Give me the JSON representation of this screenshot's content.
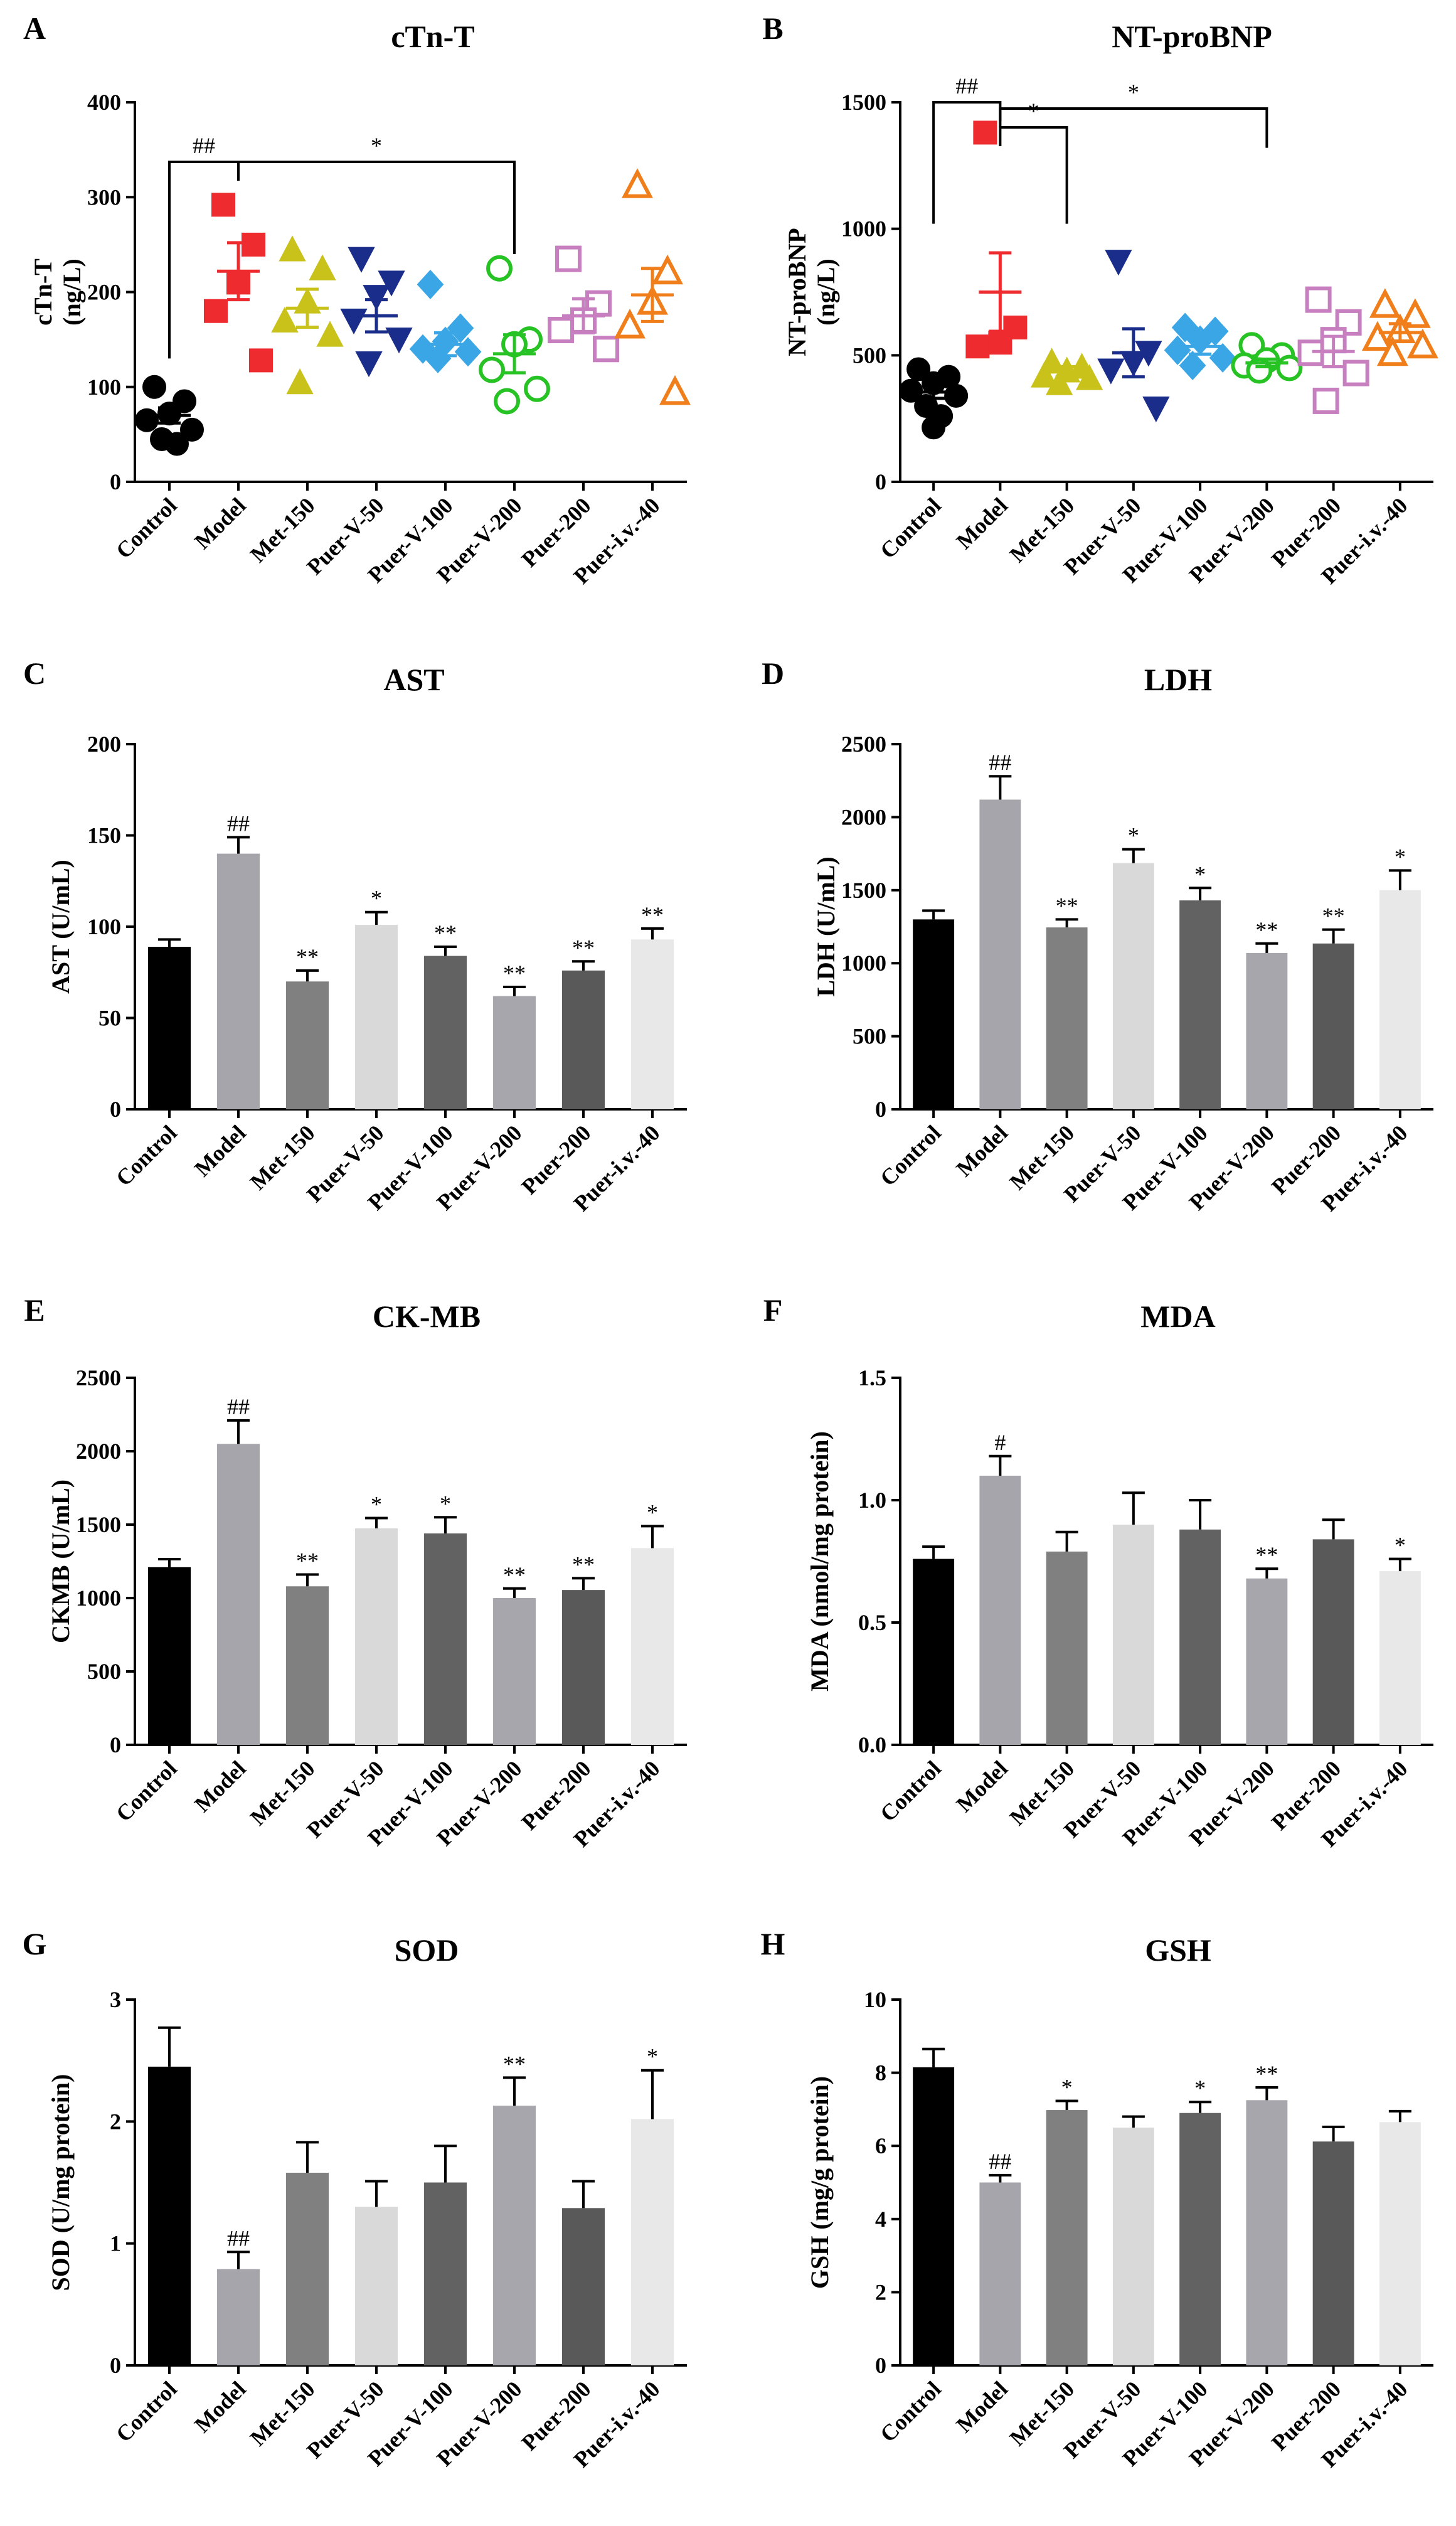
{
  "figure_label": "Serum myocardial injury markers and oxidative stress indices",
  "chart_data": [
    {
      "letter": "A",
      "type": "scatter",
      "title": "cTn-T",
      "ylabel": "cTn-T\n(ng/L)",
      "ylim": [
        0,
        400
      ],
      "yticks": [
        0,
        100,
        200,
        300,
        400
      ],
      "categories": [
        "Control",
        "Model",
        "Met-150",
        "Puer-V-50",
        "Puer-V-100",
        "Puer-V-200",
        "Puer-200",
        "Puer-i.v.-40"
      ],
      "colors": [
        "#000000",
        "#ee2b2f",
        "#c8c21b",
        "#1a2d8a",
        "#3aa6e6",
        "#27c325",
        "#c77fc0",
        "#f07e1a"
      ],
      "markers": [
        "circle",
        "square",
        "triangle",
        "triangle-down",
        "diamond",
        "circle-open",
        "square-open",
        "triangle-open"
      ],
      "points": [
        [
          100,
          85,
          72,
          65,
          55,
          45,
          40
        ],
        [
          292,
          250,
          210,
          180,
          128
        ],
        [
          245,
          225,
          190,
          170,
          155,
          105
        ],
        [
          235,
          210,
          195,
          170,
          150,
          125
        ],
        [
          208,
          162,
          148,
          140,
          137,
          130
        ],
        [
          225,
          150,
          145,
          118,
          98,
          85
        ],
        [
          235,
          188,
          170,
          160,
          140
        ],
        [
          313,
          222,
          190,
          165,
          95
        ]
      ],
      "means": [
        70,
        222,
        183,
        175,
        145,
        135,
        175,
        197
      ],
      "sems": [
        8,
        30,
        20,
        17,
        12,
        20,
        18,
        28
      ],
      "brackets": [
        {
          "from": 0,
          "to": 1,
          "label": "##"
        },
        {
          "from": 1,
          "to": 5,
          "label": "*"
        }
      ]
    },
    {
      "letter": "B",
      "type": "scatter",
      "title": "NT-proBNP",
      "ylabel": "NT-proBNP\n(ng/L)",
      "ylim": [
        0,
        1500
      ],
      "yticks": [
        0,
        500,
        1000,
        1500
      ],
      "categories": [
        "Control",
        "Model",
        "Met-150",
        "Puer-V-50",
        "Puer-V-100",
        "Puer-V-200",
        "Puer-200",
        "Puer-i.v.-40"
      ],
      "colors": [
        "#000000",
        "#ee2b2f",
        "#c8c21b",
        "#1a2d8a",
        "#3aa6e6",
        "#27c325",
        "#c77fc0",
        "#f07e1a"
      ],
      "markers": [
        "circle",
        "square",
        "triangle",
        "triangle-down",
        "diamond",
        "circle-open",
        "square-open",
        "triangle-open"
      ],
      "points": [
        [
          445,
          415,
          390,
          360,
          340,
          300,
          260,
          215
        ],
        [
          1380,
          610,
          550,
          535
        ],
        [
          475,
          455,
          440,
          420,
          410,
          390
        ],
        [
          870,
          510,
          470,
          440,
          290
        ],
        [
          610,
          595,
          560,
          520,
          490,
          460
        ],
        [
          540,
          500,
          480,
          460,
          450,
          440
        ],
        [
          720,
          630,
          560,
          510,
          430,
          320
        ],
        [
          700,
          660,
          600,
          570,
          540,
          510
        ]
      ],
      "means": [
        355,
        750,
        435,
        510,
        535,
        470,
        515,
        590
      ],
      "sems": [
        25,
        155,
        20,
        95,
        30,
        15,
        60,
        35
      ],
      "brackets": [
        {
          "from": 0,
          "to": 1,
          "label": "##"
        },
        {
          "from": 1,
          "to": 2,
          "label": "*"
        },
        {
          "from": 1,
          "to": 5,
          "label": "*"
        }
      ]
    },
    {
      "letter": "C",
      "type": "bar",
      "title": "AST",
      "ylabel": "AST (U/mL)",
      "ylim": [
        0,
        200
      ],
      "yticks": [
        0,
        50,
        100,
        150,
        200
      ],
      "categories": [
        "Control",
        "Model",
        "Met-150",
        "Puer-V-50",
        "Puer-V-100",
        "Puer-V-200",
        "Puer-200",
        "Puer-i.v.-40"
      ],
      "values": [
        89,
        140,
        70,
        101,
        84,
        62,
        76,
        93
      ],
      "errors": [
        4,
        9,
        6,
        7,
        5,
        5,
        5,
        6
      ],
      "marks": [
        "",
        "##",
        "**",
        "*",
        "**",
        "**",
        "**",
        "**"
      ]
    },
    {
      "letter": "D",
      "type": "bar",
      "title": "LDH",
      "ylabel": "LDH (U/mL)",
      "ylim": [
        0,
        2500
      ],
      "yticks": [
        0,
        500,
        1000,
        1500,
        2000,
        2500
      ],
      "categories": [
        "Control",
        "Model",
        "Met-150",
        "Puer-V-50",
        "Puer-V-100",
        "Puer-V-200",
        "Puer-200",
        "Puer-i.v.-40"
      ],
      "values": [
        1300,
        2120,
        1245,
        1685,
        1430,
        1070,
        1135,
        1500
      ],
      "errors": [
        60,
        160,
        55,
        95,
        85,
        65,
        95,
        135
      ],
      "marks": [
        "",
        "##",
        "**",
        "*",
        "*",
        "**",
        "**",
        "*"
      ]
    },
    {
      "letter": "E",
      "type": "bar",
      "title": "CK-MB",
      "ylabel": "CKMB (U/mL)",
      "ylim": [
        0,
        2500
      ],
      "yticks": [
        0,
        500,
        1000,
        1500,
        2000,
        2500
      ],
      "categories": [
        "Control",
        "Model",
        "Met-150",
        "Puer-V-50",
        "Puer-V-100",
        "Puer-V-200",
        "Puer-200",
        "Puer-i.v.-40"
      ],
      "values": [
        1210,
        2050,
        1080,
        1475,
        1440,
        1000,
        1055,
        1340
      ],
      "errors": [
        55,
        160,
        80,
        70,
        110,
        65,
        80,
        150
      ],
      "marks": [
        "",
        "##",
        "**",
        "*",
        "*",
        "**",
        "**",
        "*"
      ]
    },
    {
      "letter": "F",
      "type": "bar",
      "title": "MDA",
      "ylabel": "MDA (nmol/mg protein)",
      "ylim": [
        0,
        1.5
      ],
      "yticks": [
        "0.0",
        "0.5",
        "1.0",
        "1.5"
      ],
      "categories": [
        "Control",
        "Model",
        "Met-150",
        "Puer-V-50",
        "Puer-V-100",
        "Puer-V-200",
        "Puer-200",
        "Puer-i.v.-40"
      ],
      "values": [
        0.76,
        1.1,
        0.79,
        0.9,
        0.88,
        0.68,
        0.84,
        0.71
      ],
      "errors": [
        0.05,
        0.08,
        0.08,
        0.13,
        0.12,
        0.04,
        0.08,
        0.05
      ],
      "marks": [
        "",
        "#",
        "",
        "",
        "",
        "**",
        "",
        "*"
      ]
    },
    {
      "letter": "G",
      "type": "bar",
      "title": "SOD",
      "ylabel": "SOD (U/mg protein)",
      "ylim": [
        0,
        3
      ],
      "yticks": [
        0,
        1,
        2,
        3
      ],
      "categories": [
        "Control",
        "Model",
        "Met-150",
        "Puer-V-50",
        "Puer-V-100",
        "Puer-V-200",
        "Puer-200",
        "Puer-i.v.-40"
      ],
      "values": [
        2.45,
        0.79,
        1.58,
        1.3,
        1.5,
        2.13,
        1.29,
        2.02
      ],
      "errors": [
        0.32,
        0.14,
        0.25,
        0.21,
        0.3,
        0.23,
        0.22,
        0.4
      ],
      "marks": [
        "",
        "##",
        "",
        "",
        "",
        "**",
        "",
        "*"
      ]
    },
    {
      "letter": "H",
      "type": "bar",
      "title": "GSH",
      "ylabel": "GSH (mg/g protein)",
      "ylim": [
        0,
        10
      ],
      "yticks": [
        0,
        2,
        4,
        6,
        8,
        10
      ],
      "categories": [
        "Control",
        "Model",
        "Met-150",
        "Puer-V-50",
        "Puer-V-100",
        "Puer-V-200",
        "Puer-200",
        "Puer-i.v.-40"
      ],
      "values": [
        8.15,
        5.0,
        6.98,
        6.5,
        6.9,
        7.25,
        6.12,
        6.65
      ],
      "errors": [
        0.5,
        0.2,
        0.25,
        0.3,
        0.3,
        0.35,
        0.4,
        0.3
      ],
      "marks": [
        "",
        "##",
        "*",
        "",
        "*",
        "**",
        "",
        ""
      ]
    }
  ],
  "bar_colors": [
    "#000000",
    "#a5a5ab",
    "#808080",
    "#d9d9d9",
    "#626262",
    "#a6a6ac",
    "#595959",
    "#e8e8e8"
  ]
}
